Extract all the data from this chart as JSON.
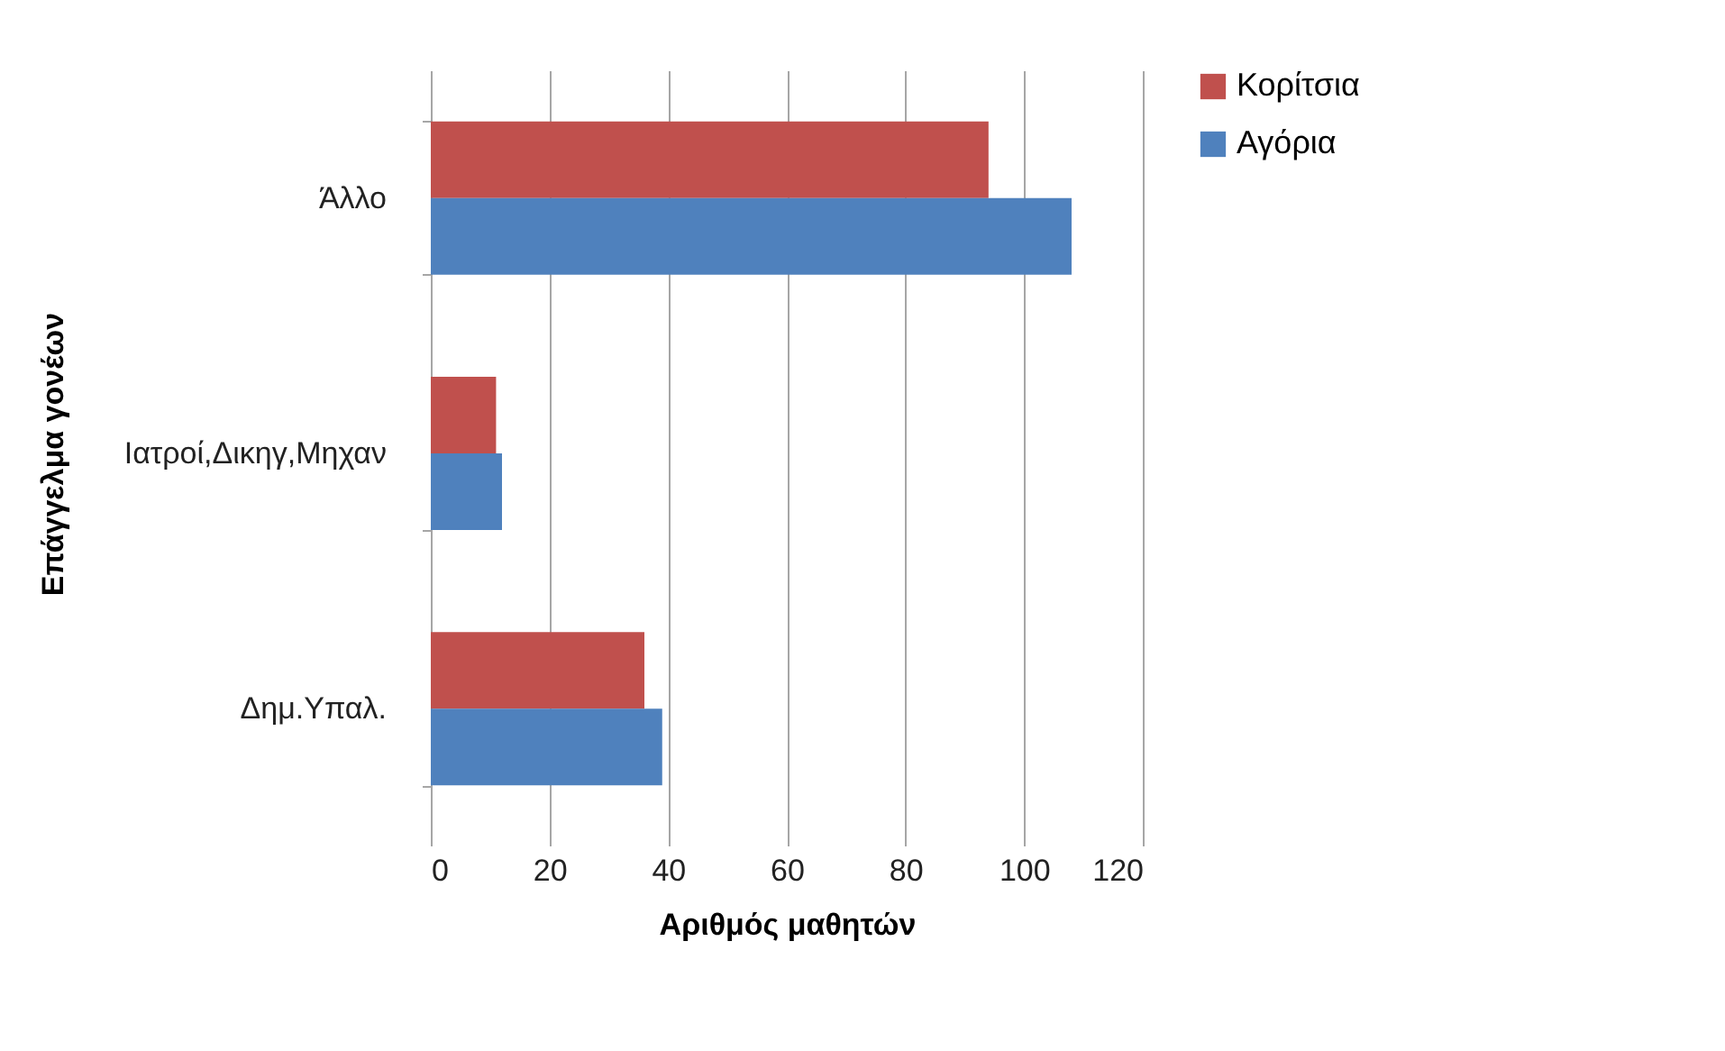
{
  "chart_data": {
    "type": "bar",
    "orientation": "horizontal",
    "categories": [
      "Άλλο",
      "Ιατροί,Δικηγ,Μηχαν",
      "Δημ.Υπαλ."
    ],
    "series": [
      {
        "name": "Κορίτσια",
        "color": "#c0504d",
        "values": [
          94,
          11,
          36
        ]
      },
      {
        "name": "Αγόρια",
        "color": "#4f81bd",
        "values": [
          108,
          12,
          39
        ]
      }
    ],
    "xlabel": "Αριθμός μαθητών",
    "ylabel": "Επάγγελμα γονέων",
    "xlim": [
      0,
      120
    ],
    "xticks": [
      0,
      20,
      40,
      60,
      80,
      100,
      120
    ],
    "grid": "x",
    "legend": "right"
  }
}
